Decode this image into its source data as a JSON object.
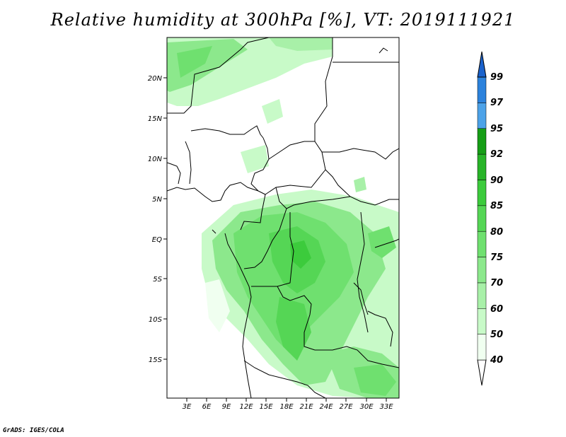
{
  "title": "Relative humidity at 300hPa [%], VT: 2019111921",
  "credit": "GrADS: IGES/COLA",
  "map": {
    "lat_labels": [
      "20N",
      "15N",
      "10N",
      "5N",
      "EQ",
      "5S",
      "10S",
      "15S"
    ],
    "lon_labels": [
      "3E",
      "6E",
      "9E",
      "12E",
      "15E",
      "18E",
      "21E",
      "24E",
      "27E",
      "30E",
      "33E"
    ],
    "colors": {
      "coast": "#000000",
      "frame": "#000000"
    }
  },
  "colorbar": {
    "levels": [
      "40",
      "50",
      "60",
      "70",
      "75",
      "80",
      "85",
      "90",
      "92",
      "95",
      "97",
      "99"
    ],
    "colors": [
      "#f0fff0",
      "#c8fac8",
      "#a8f0a8",
      "#8ce88c",
      "#6fe06f",
      "#55d655",
      "#3ccb3c",
      "#28b428",
      "#169e16",
      "#4ca2e8",
      "#2c82dc",
      "#1a62cc"
    ]
  }
}
